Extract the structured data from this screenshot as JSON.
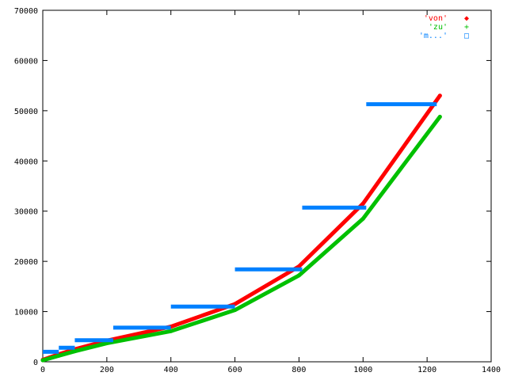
{
  "chart_data": {
    "type": "scatter",
    "title": "",
    "xlabel": "",
    "ylabel": "",
    "xlim": [
      0,
      1400
    ],
    "ylim": [
      0,
      70000
    ],
    "x_ticks": [
      0,
      200,
      400,
      600,
      800,
      1000,
      1200,
      1400
    ],
    "y_ticks": [
      0,
      10000,
      20000,
      30000,
      40000,
      50000,
      60000,
      70000
    ],
    "x_tick_labels": [
      "0",
      "200",
      "400",
      "600",
      "800",
      "1000",
      "1200",
      "1400"
    ],
    "y_tick_labels": [
      "0",
      "10000",
      "20000",
      "30000",
      "40000",
      "50000",
      "60000",
      "70000"
    ],
    "grid": false,
    "legend_position": "top-right",
    "series": [
      {
        "name": "'von'",
        "marker": "◆",
        "color": "#ff0000",
        "style": "points",
        "x": [
          0,
          50,
          100,
          200,
          400,
          600,
          800,
          1000,
          1240
        ],
        "y": [
          400,
          1500,
          2500,
          4200,
          7000,
          11500,
          19000,
          31500,
          53000
        ]
      },
      {
        "name": "'zu'",
        "marker": "+",
        "color": "#00c000",
        "style": "points",
        "x": [
          0,
          50,
          100,
          200,
          400,
          600,
          800,
          1000,
          1240
        ],
        "y": [
          300,
          1200,
          2100,
          3700,
          6100,
          10300,
          17200,
          28500,
          48800
        ]
      },
      {
        "name": "'m...'",
        "marker": "□",
        "color": "#0080ff",
        "style": "steps",
        "segments": [
          [
            0,
            50,
            2000
          ],
          [
            50,
            100,
            2800
          ],
          [
            100,
            220,
            4300
          ],
          [
            220,
            400,
            6800
          ],
          [
            400,
            600,
            11000
          ],
          [
            600,
            810,
            18400
          ],
          [
            810,
            1010,
            30700
          ],
          [
            1010,
            1230,
            51300
          ]
        ]
      }
    ]
  }
}
